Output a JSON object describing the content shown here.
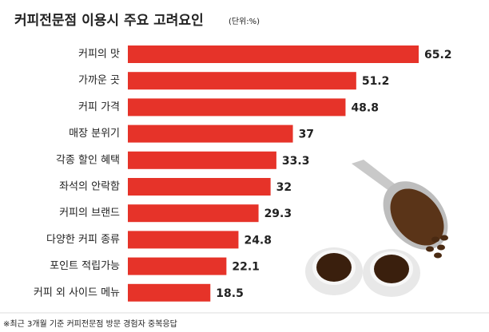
{
  "chart_data": {
    "type": "bar",
    "orientation": "horizontal",
    "title": "커피전문점 이용시 주요 고려요인",
    "subtitle": "(단위:%)",
    "footnote": "※최근 3개월 기준 커피전문점 방문 경험자 중복응답",
    "categories": [
      "커피의 맛",
      "가까운 곳",
      "커피 가격",
      "매장 분위기",
      "각종 할인 혜택",
      "좌석의 안락함",
      "커피의 브랜드",
      "다양한 커피 종류",
      "포인트 적립가능",
      "커피 외 사이드 메뉴"
    ],
    "values": [
      65.2,
      51.2,
      48.8,
      37,
      33.3,
      32,
      29.3,
      24.8,
      22.1,
      18.5
    ],
    "color": "#e63329"
  }
}
